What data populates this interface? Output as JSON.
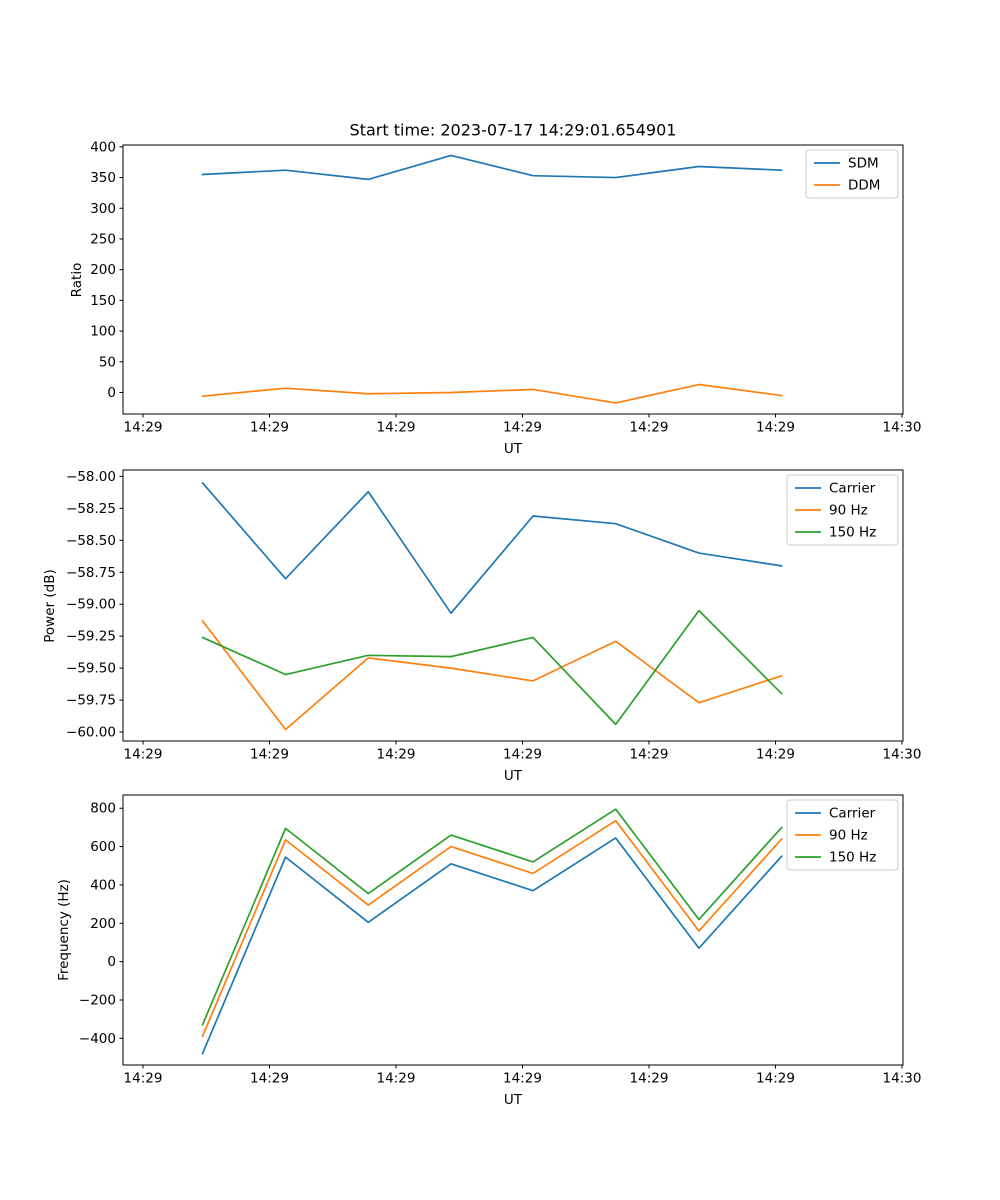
{
  "x_axis": {
    "label": "UT",
    "tick_labels": [
      "14:29",
      "14:29",
      "14:29",
      "14:29",
      "14:29",
      "14:29",
      "14:30"
    ],
    "tick_seconds": [
      0,
      10,
      20,
      30,
      40,
      50,
      60
    ],
    "lim_seconds": [
      -1.58,
      60.08
    ],
    "point_seconds": [
      4.7,
      11.27,
      17.81,
      24.35,
      30.83,
      37.37,
      43.95,
      50.49
    ]
  },
  "colors": {
    "series_blue": "#1f77b4",
    "series_orange": "#ff7f0e",
    "series_green": "#2ca02c",
    "axis": "#000000",
    "legend_border": "#cccccc",
    "background": "#ffffff"
  },
  "chart_data": [
    {
      "type": "line",
      "title": "Start time: 2023-07-17 14:29:01.654901",
      "xlabel": "UT",
      "ylabel": "Ratio",
      "ylim": [
        -35,
        403
      ],
      "grid": false,
      "legend_position": "upper right",
      "ytick_values": [
        0,
        50,
        100,
        150,
        200,
        250,
        300,
        350,
        400
      ],
      "ytick_labels": [
        "0",
        "50",
        "100",
        "150",
        "200",
        "250",
        "300",
        "350",
        "400"
      ],
      "series": [
        {
          "name": "SDM",
          "color": "#1f77b4",
          "values": [
            355,
            362,
            347,
            386,
            353,
            350,
            368,
            362
          ]
        },
        {
          "name": "DDM",
          "color": "#ff7f0e",
          "values": [
            -6,
            7,
            -2,
            0,
            5,
            -17,
            13,
            -5
          ]
        }
      ]
    },
    {
      "type": "line",
      "title": "",
      "xlabel": "UT",
      "ylabel": "Power (dB)",
      "ylim": [
        -60.07,
        -57.95
      ],
      "grid": false,
      "legend_position": "upper right",
      "ytick_values": [
        -60.0,
        -59.75,
        -59.5,
        -59.25,
        -59.0,
        -58.75,
        -58.5,
        -58.25,
        -58.0
      ],
      "ytick_labels": [
        "−60.00",
        "−59.75",
        "−59.50",
        "−59.25",
        "−59.00",
        "−58.75",
        "−58.50",
        "−58.25",
        "−58.00"
      ],
      "series": [
        {
          "name": "Carrier",
          "color": "#1f77b4",
          "values": [
            -58.05,
            -58.8,
            -58.12,
            -59.07,
            -58.31,
            -58.37,
            -58.6,
            -58.7
          ]
        },
        {
          "name": "90 Hz",
          "color": "#ff7f0e",
          "values": [
            -59.13,
            -59.98,
            -59.42,
            -59.5,
            -59.6,
            -59.29,
            -59.77,
            -59.56
          ]
        },
        {
          "name": "150 Hz",
          "color": "#2ca02c",
          "values": [
            -59.26,
            -59.55,
            -59.4,
            -59.41,
            -59.26,
            -59.94,
            -59.05,
            -59.7
          ]
        }
      ]
    },
    {
      "type": "line",
      "title": "",
      "xlabel": "UT",
      "ylabel": "Frequency (Hz)",
      "ylim": [
        -539,
        869
      ],
      "grid": false,
      "legend_position": "upper right",
      "ytick_values": [
        -400,
        -200,
        0,
        200,
        400,
        600,
        800
      ],
      "ytick_labels": [
        "−400",
        "−200",
        "0",
        "200",
        "400",
        "600",
        "800"
      ],
      "series": [
        {
          "name": "Carrier",
          "color": "#1f77b4",
          "values": [
            -480,
            545,
            205,
            510,
            370,
            645,
            70,
            550
          ]
        },
        {
          "name": "90 Hz",
          "color": "#ff7f0e",
          "values": [
            -390,
            635,
            295,
            600,
            460,
            735,
            160,
            640
          ]
        },
        {
          "name": "150 Hz",
          "color": "#2ca02c",
          "values": [
            -330,
            695,
            355,
            660,
            520,
            795,
            220,
            700
          ]
        }
      ]
    }
  ]
}
